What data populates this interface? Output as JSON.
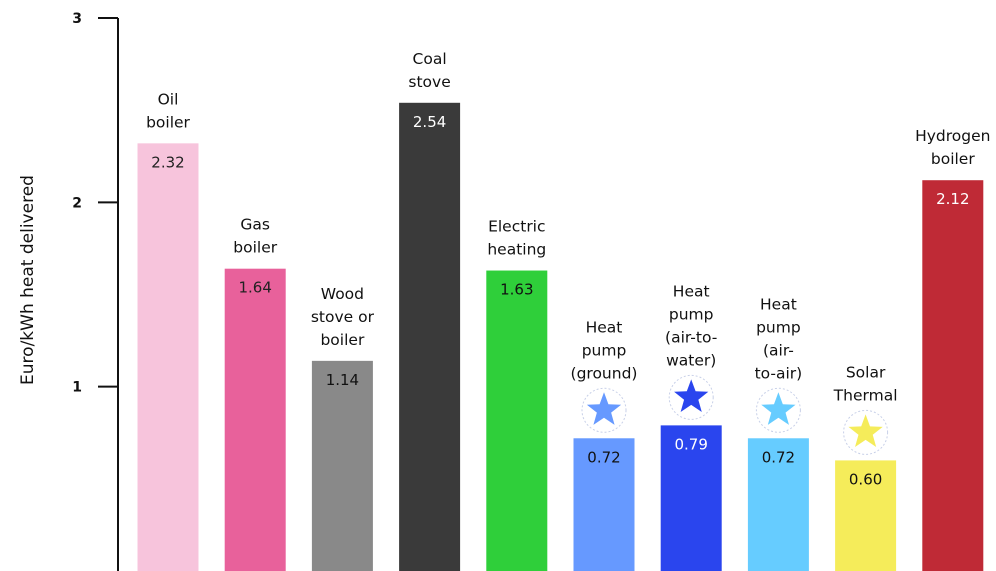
{
  "chart_data": {
    "type": "bar",
    "ylabel": "Euro/kWh heat delivered",
    "xlabel": "",
    "ylim": [
      0,
      3
    ],
    "yticks": [
      1,
      2,
      3
    ],
    "grid": false,
    "categories": [
      "Oil boiler",
      "Gas boiler",
      "Wood stove or boiler",
      "Coal stove",
      "Electric heating",
      "Heat pump (ground)",
      "Heat pump (air-to-water)",
      "Heat pump (air-to-air)",
      "Solar Thermal",
      "Hydrogen boiler"
    ],
    "category_lines": [
      [
        "Oil",
        "boiler"
      ],
      [
        "Gas",
        "boiler"
      ],
      [
        "Wood",
        "stove or",
        "boiler"
      ],
      [
        "Coal",
        "stove"
      ],
      [
        "Electric",
        "heating"
      ],
      [
        "Heat",
        "pump",
        "(ground)"
      ],
      [
        "Heat",
        "pump",
        "(air-to-",
        "water)"
      ],
      [
        "Heat",
        "pump",
        "(air-",
        "to-air)"
      ],
      [
        "Solar",
        "Thermal"
      ],
      [
        "Hydrogen",
        "boiler"
      ]
    ],
    "values": [
      2.32,
      1.64,
      1.14,
      2.54,
      1.63,
      0.72,
      0.79,
      0.72,
      0.6,
      2.12
    ],
    "value_labels": [
      "2.32",
      "1.64",
      "1.14",
      "2.54",
      "1.63",
      "0.72",
      "0.79",
      "0.72",
      "0.60",
      "2.12"
    ],
    "colors": [
      "#f7c4dc",
      "#e8619b",
      "#898989",
      "#3a3a3a",
      "#2fcf3a",
      "#6699ff",
      "#2a45ee",
      "#66ccff",
      "#f5ec5a",
      "#bf2a36"
    ],
    "value_label_colors": [
      "#222222",
      "#222222",
      "#111111",
      "#ffffff",
      "#111111",
      "#111111",
      "#ffffff",
      "#111111",
      "#111111",
      "#ffffff"
    ],
    "star_markers": [
      false,
      false,
      false,
      false,
      false,
      true,
      true,
      true,
      true,
      false
    ],
    "star_colors": [
      "",
      "",
      "",
      "",
      "",
      "#6699ff",
      "#2a45ee",
      "#66ccff",
      "#f5ec5a",
      ""
    ]
  }
}
